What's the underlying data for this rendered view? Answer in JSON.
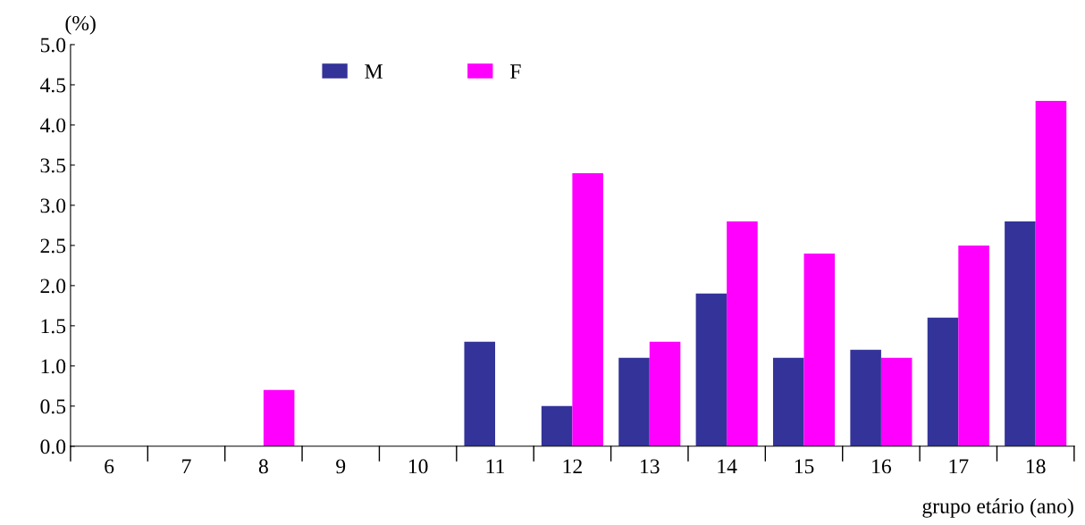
{
  "chart_data": {
    "type": "bar",
    "ylabel": "(%)",
    "xlabel": "grupo etário (ano)",
    "categories": [
      "6",
      "7",
      "8",
      "9",
      "10",
      "11",
      "12",
      "13",
      "14",
      "15",
      "16",
      "17",
      "18"
    ],
    "series": [
      {
        "name": "M",
        "color": "#333399",
        "values": [
          0,
          0,
          0,
          0,
          0,
          1.3,
          0.5,
          1.1,
          1.9,
          1.1,
          1.2,
          1.6,
          2.8
        ]
      },
      {
        "name": "F",
        "color": "#ff00ff",
        "values": [
          0,
          0,
          0.7,
          0,
          0,
          0,
          3.4,
          1.3,
          2.8,
          2.4,
          1.1,
          2.5,
          4.3
        ]
      }
    ],
    "ylim": [
      0,
      5
    ],
    "yticks": [
      {
        "value": 0,
        "label": "0.0"
      },
      {
        "value": 0.5,
        "label": "0.5"
      },
      {
        "value": 1,
        "label": "1.0"
      },
      {
        "value": 1.5,
        "label": "1.5"
      },
      {
        "value": 2,
        "label": "2.0"
      },
      {
        "value": 2.5,
        "label": "2.5"
      },
      {
        "value": 3,
        "label": "3.0"
      },
      {
        "value": 3.5,
        "label": "3.5"
      },
      {
        "value": 4,
        "label": "4.0"
      },
      {
        "value": 4.5,
        "label": "4.5"
      },
      {
        "value": 5,
        "label": "5.0"
      }
    ],
    "grid": false,
    "legend": "top"
  }
}
